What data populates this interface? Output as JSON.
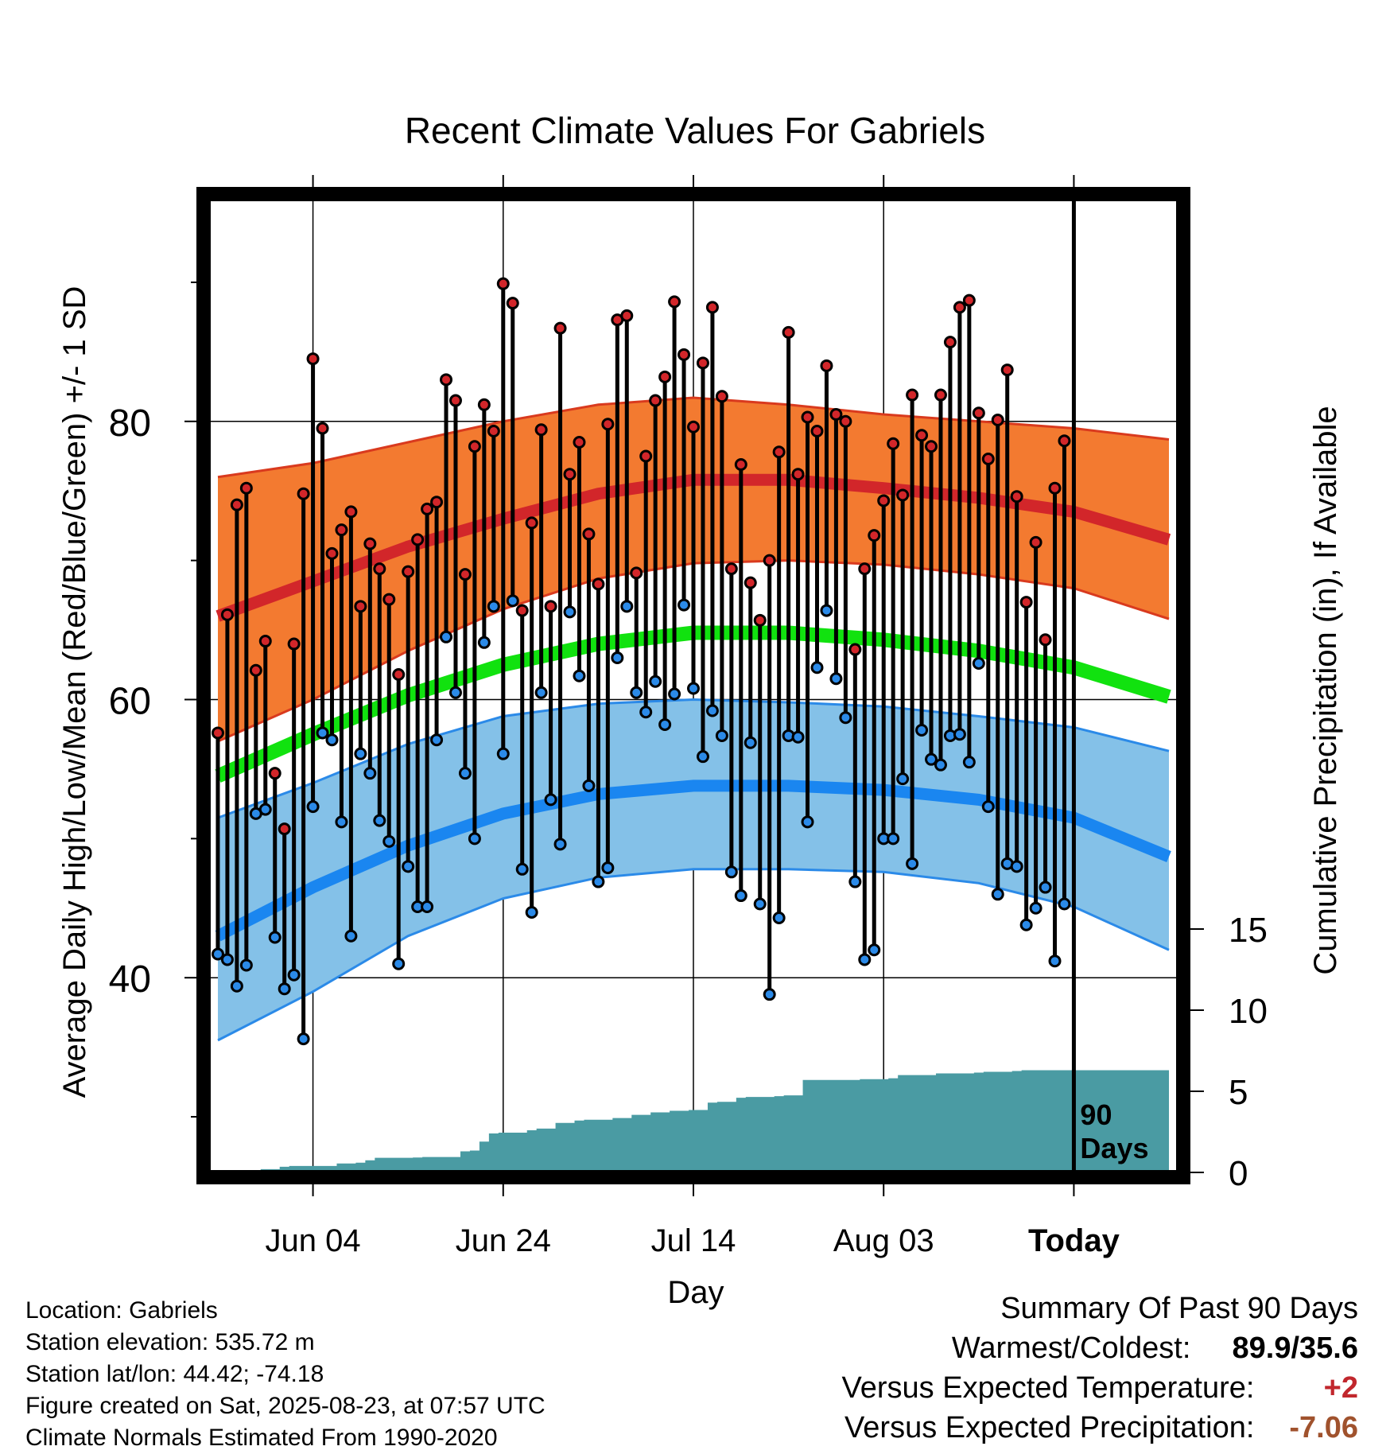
{
  "chart_data": {
    "type": "line",
    "title": "Recent Climate Values For Gabriels",
    "xlabel": "Day",
    "ylabel": "Average Daily High/Low/Mean (Red/Blue/Green) +/- 1 SD",
    "y2label": "Cumulative Precipitation (in), If Available",
    "ylim": [
      26,
      96
    ],
    "y2lim": [
      0,
      60
    ],
    "xlim": [
      -11,
      91
    ],
    "x_axis": {
      "tick_positions": [
        0,
        20,
        40,
        60,
        80
      ],
      "tick_labels": [
        "Jun 04",
        "Jun 24",
        "Jul 14",
        "Aug 03",
        "Today"
      ],
      "unit": "days since Jun 04"
    },
    "y_ticks_major": [
      40,
      60,
      80
    ],
    "y_ticks_minor": [
      30,
      50,
      70,
      90
    ],
    "y2_ticks": [
      0,
      5,
      10,
      15
    ],
    "grid": true,
    "today_marker": {
      "x": 80,
      "label_line1": "90",
      "label_line2": "Days"
    },
    "colors": {
      "high_band": "#f37a30",
      "high_band_edge": "#d93a1e",
      "high_mean": "#d2262a",
      "low_band": "#84c1e8",
      "low_band_edge": "#2b8ae8",
      "low_mean": "#1a86f0",
      "mean_line": "#11e20f",
      "precip": "#4a9ba3",
      "high_dot": "#d2262a",
      "low_dot": "#2b8ae8"
    },
    "normals": {
      "x": [
        -10,
        0,
        10,
        20,
        30,
        40,
        50,
        60,
        70,
        80,
        90
      ],
      "high_mean": [
        66,
        68.5,
        71,
        73,
        74.8,
        75.8,
        75.8,
        75.2,
        74.5,
        73.5,
        71.5
      ],
      "high_upper": [
        76,
        77,
        78.5,
        80,
        81.2,
        81.7,
        81.2,
        80.5,
        80,
        79.5,
        78.7
      ],
      "high_lower": [
        57,
        60,
        63.5,
        66.5,
        68.7,
        69.8,
        70,
        69.7,
        69,
        68,
        65.8
      ],
      "mean": [
        54.5,
        57.5,
        60.3,
        62.5,
        64,
        64.8,
        64.8,
        64.3,
        63.5,
        62.3,
        60.2
      ],
      "low_mean": [
        43,
        46.5,
        49.5,
        51.8,
        53.2,
        53.8,
        53.8,
        53.5,
        52.8,
        51.5,
        48.7
      ],
      "low_upper": [
        51.5,
        54,
        56.8,
        58.8,
        59.7,
        60,
        59.8,
        59.5,
        58.8,
        58,
        56.3
      ],
      "low_lower": [
        35.5,
        39,
        43,
        45.7,
        47.2,
        47.8,
        47.8,
        47.6,
        46.8,
        45.1,
        42
      ]
    },
    "series": [
      {
        "name": "Daily High",
        "x": [
          -10,
          -9,
          -8,
          -7,
          -6,
          -5,
          -4,
          -3,
          -2,
          -1,
          0,
          1,
          2,
          3,
          4,
          5,
          6,
          7,
          8,
          9,
          10,
          11,
          12,
          13,
          14,
          15,
          16,
          17,
          18,
          19,
          20,
          21,
          22,
          23,
          24,
          25,
          26,
          27,
          28,
          29,
          30,
          31,
          32,
          33,
          34,
          35,
          36,
          37,
          38,
          39,
          40,
          41,
          42,
          43,
          44,
          45,
          46,
          47,
          48,
          49,
          50,
          51,
          52,
          53,
          54,
          55,
          56,
          57,
          58,
          59,
          60,
          61,
          62,
          63,
          64,
          65,
          66,
          67,
          68,
          69,
          70,
          71,
          72,
          73,
          74,
          75,
          76,
          77,
          78,
          79
        ],
        "values": [
          57.6,
          66.1,
          74,
          75.2,
          62.1,
          64.2,
          54.7,
          50.7,
          64,
          74.8,
          84.5,
          79.5,
          70.5,
          72.2,
          73.5,
          66.7,
          71.2,
          69.4,
          67.2,
          61.8,
          69.2,
          71.5,
          73.7,
          74.2,
          83,
          81.5,
          69,
          78.2,
          81.2,
          79.3,
          89.9,
          88.5,
          66.4,
          72.7,
          79.4,
          66.7,
          86.7,
          76.2,
          78.5,
          71.9,
          68.3,
          79.8,
          87.3,
          87.6,
          69.1,
          77.5,
          81.5,
          83.2,
          88.6,
          84.8,
          79.6,
          84.2,
          88.2,
          81.8,
          69.4,
          76.9,
          68.4,
          65.7,
          70,
          77.8,
          86.4,
          76.2,
          80.3,
          79.3,
          84,
          80.5,
          80,
          63.6,
          69.4,
          71.8,
          74.3,
          78.4,
          74.7,
          81.9,
          79,
          78.2,
          81.9,
          85.7,
          88.2,
          88.7,
          80.6,
          77.3,
          80.1,
          83.7,
          74.6,
          67,
          71.3,
          64.3,
          75.2,
          78.6
        ]
      },
      {
        "name": "Daily Low",
        "x": [
          -10,
          -9,
          -8,
          -7,
          -6,
          -5,
          -4,
          -3,
          -2,
          -1,
          0,
          1,
          2,
          3,
          4,
          5,
          6,
          7,
          8,
          9,
          10,
          11,
          12,
          13,
          14,
          15,
          16,
          17,
          18,
          19,
          20,
          21,
          22,
          23,
          24,
          25,
          26,
          27,
          28,
          29,
          30,
          31,
          32,
          33,
          34,
          35,
          36,
          37,
          38,
          39,
          40,
          41,
          42,
          43,
          44,
          45,
          46,
          47,
          48,
          49,
          50,
          51,
          52,
          53,
          54,
          55,
          56,
          57,
          58,
          59,
          60,
          61,
          62,
          63,
          64,
          65,
          66,
          67,
          68,
          69,
          70,
          71,
          72,
          73,
          74,
          75,
          76,
          77,
          78,
          79
        ],
        "values": [
          41.7,
          41.3,
          39.4,
          40.9,
          51.8,
          52.1,
          42.9,
          39.2,
          40.2,
          35.6,
          52.3,
          57.6,
          57.1,
          51.2,
          43,
          56.1,
          54.7,
          51.3,
          49.8,
          41,
          48,
          45.1,
          45.1,
          57.1,
          64.5,
          60.5,
          54.7,
          50,
          64.1,
          66.7,
          56.1,
          67.1,
          47.8,
          44.7,
          60.5,
          52.8,
          49.6,
          66.3,
          61.7,
          53.8,
          46.9,
          47.9,
          63,
          66.7,
          60.5,
          59.1,
          61.3,
          58.2,
          60.4,
          66.8,
          60.8,
          55.9,
          59.2,
          57.4,
          47.6,
          45.9,
          56.9,
          45.3,
          38.8,
          44.3,
          57.4,
          57.3,
          51.2,
          62.3,
          66.4,
          61.5,
          58.7,
          46.9,
          41.3,
          42,
          50,
          50,
          54.3,
          48.2,
          57.8,
          55.7,
          55.3,
          57.4,
          57.5,
          55.5,
          62.6,
          52.3,
          46,
          48.2,
          48,
          43.8,
          45,
          46.5,
          41.2,
          45.3
        ]
      },
      {
        "name": "Cumulative Precipitation",
        "x": [
          -10,
          -7,
          -6,
          -4,
          -3,
          -1,
          0,
          1,
          2,
          3,
          4,
          5,
          6,
          7,
          8,
          9,
          10,
          11,
          12,
          13,
          14,
          15,
          16,
          17,
          18,
          19,
          20,
          21,
          22,
          23,
          24,
          25,
          26,
          27,
          28,
          29,
          30,
          31,
          32,
          33,
          34,
          35,
          36,
          37,
          38,
          39,
          40,
          41,
          42,
          43,
          44,
          45,
          46,
          47,
          48,
          49,
          50,
          51,
          52,
          53,
          54,
          55,
          56,
          57,
          58,
          59,
          60,
          61,
          62,
          63,
          64,
          65,
          66,
          67,
          68,
          69,
          70,
          71,
          72,
          73,
          74,
          75,
          76,
          77,
          78,
          79,
          89
        ],
        "values": [
          0,
          0,
          0.2,
          0.35,
          0.4,
          0.4,
          0.4,
          0.4,
          0.55,
          0.55,
          0.6,
          0.75,
          0.9,
          0.9,
          0.9,
          0.9,
          0.92,
          0.95,
          0.95,
          0.95,
          0.95,
          1.3,
          1.35,
          1.9,
          2.4,
          2.45,
          2.45,
          2.45,
          2.6,
          2.7,
          2.7,
          3.05,
          3.05,
          3.2,
          3.25,
          3.25,
          3.25,
          3.35,
          3.35,
          3.55,
          3.55,
          3.7,
          3.7,
          3.8,
          3.8,
          3.85,
          3.85,
          4.3,
          4.35,
          4.35,
          4.6,
          4.65,
          4.65,
          4.65,
          4.7,
          4.75,
          4.75,
          5.7,
          5.7,
          5.7,
          5.7,
          5.7,
          5.7,
          5.75,
          5.75,
          5.75,
          5.8,
          6.0,
          6.0,
          6.0,
          6.0,
          6.1,
          6.1,
          6.1,
          6.1,
          6.15,
          6.2,
          6.2,
          6.2,
          6.25,
          6.3,
          6.3,
          6.3,
          6.3,
          6.3,
          6.3,
          6.3
        ]
      }
    ]
  },
  "info": {
    "location": "Location: Gabriels",
    "elevation": "Station elevation: 535.72 m",
    "latlon": "Station lat/lon: 44.42; -74.18",
    "created": "Figure created on Sat, 2025-08-23, at 07:57 UTC",
    "normals": "Climate Normals Estimated From 1990-2020"
  },
  "summary": {
    "heading": "Summary Of Past 90 Days",
    "warm_cold_label": "Warmest/Coldest:",
    "warm_cold_value": "89.9/35.6",
    "temp_label": "Versus Expected Temperature:",
    "temp_value": "+2",
    "temp_color": "#c1272d",
    "precip_label": "Versus Expected Precipitation:",
    "precip_value": "-7.06",
    "precip_color": "#a0522d"
  }
}
